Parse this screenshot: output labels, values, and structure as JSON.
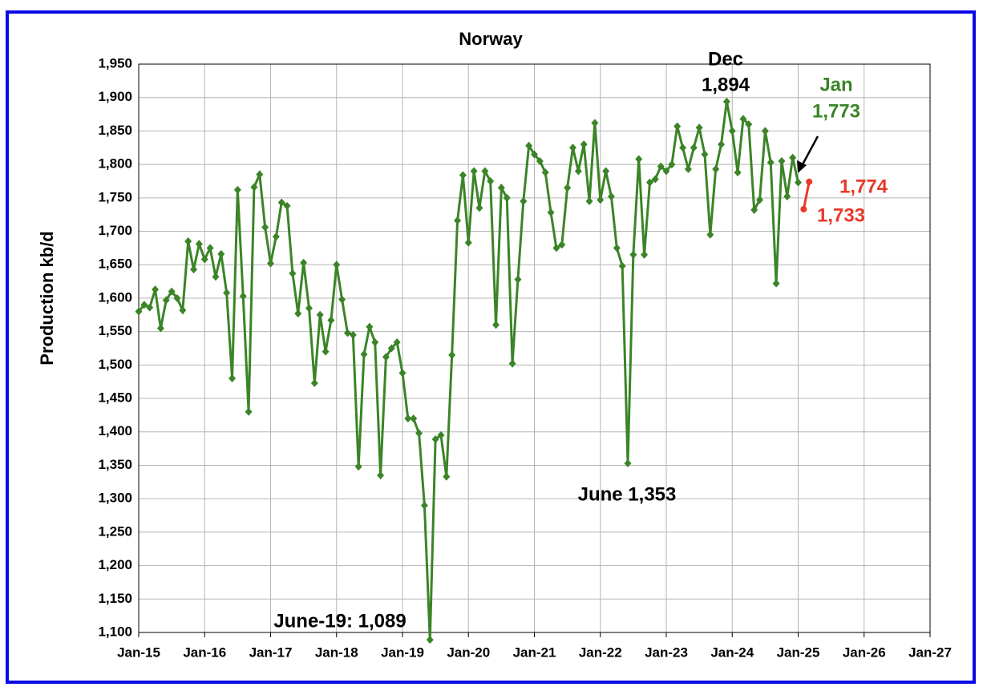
{
  "chart_data": {
    "type": "line",
    "title": "Norway",
    "y_label": "Production kb/d",
    "x": [
      "Jan-15",
      "Feb-15",
      "Mar-15",
      "Apr-15",
      "May-15",
      "Jun-15",
      "Jul-15",
      "Aug-15",
      "Sep-15",
      "Oct-15",
      "Nov-15",
      "Dec-15",
      "Jan-16",
      "Feb-16",
      "Mar-16",
      "Apr-16",
      "May-16",
      "Jun-16",
      "Jul-16",
      "Aug-16",
      "Sep-16",
      "Oct-16",
      "Nov-16",
      "Dec-16",
      "Jan-17",
      "Feb-17",
      "Mar-17",
      "Apr-17",
      "May-17",
      "Jun-17",
      "Jul-17",
      "Aug-17",
      "Sep-17",
      "Oct-17",
      "Nov-17",
      "Dec-17",
      "Jan-18",
      "Feb-18",
      "Mar-18",
      "Apr-18",
      "May-18",
      "Jun-18",
      "Jul-18",
      "Aug-18",
      "Sep-18",
      "Oct-18",
      "Nov-18",
      "Dec-18",
      "Jan-19",
      "Feb-19",
      "Mar-19",
      "Apr-19",
      "May-19",
      "Jun-19",
      "Jul-19",
      "Aug-19",
      "Sep-19",
      "Oct-19",
      "Nov-19",
      "Dec-19",
      "Jan-20",
      "Feb-20",
      "Mar-20",
      "Apr-20",
      "May-20",
      "Jun-20",
      "Jul-20",
      "Aug-20",
      "Sep-20",
      "Oct-20",
      "Nov-20",
      "Dec-20",
      "Jan-21",
      "Feb-21",
      "Mar-21",
      "Apr-21",
      "May-21",
      "Jun-21",
      "Jul-21",
      "Aug-21",
      "Sep-21",
      "Oct-21",
      "Nov-21",
      "Dec-21",
      "Jan-22",
      "Feb-22",
      "Mar-22",
      "Apr-22",
      "May-22",
      "Jun-22",
      "Jul-22",
      "Aug-22",
      "Sep-22",
      "Oct-22",
      "Nov-22",
      "Dec-22",
      "Jan-23",
      "Feb-23",
      "Mar-23",
      "Apr-23",
      "May-23",
      "Jun-23",
      "Jul-23",
      "Aug-23",
      "Sep-23",
      "Oct-23",
      "Nov-23",
      "Dec-23",
      "Jan-24",
      "Feb-24",
      "Mar-24",
      "Apr-24",
      "May-24",
      "Jun-24",
      "Jul-24",
      "Aug-24",
      "Sep-24",
      "Oct-24",
      "Nov-24",
      "Dec-24",
      "Jan-25"
    ],
    "series": [
      {
        "color": "#3b8427",
        "values": [
          1580,
          1590,
          1586,
          1613,
          1555,
          1597,
          1610,
          1600,
          1582,
          1685,
          1643,
          1681,
          1658,
          1675,
          1632,
          1666,
          1608,
          1480,
          1762,
          1603,
          1430,
          1766,
          1785,
          1706,
          1652,
          1692,
          1743,
          1738,
          1637,
          1577,
          1653,
          1585,
          1473,
          1575,
          1520,
          1567,
          1650,
          1598,
          1548,
          1545,
          1348,
          1516,
          1557,
          1534,
          1335,
          1512,
          1525,
          1534,
          1488,
          1420,
          1420,
          1398,
          1290,
          1089,
          1389,
          1395,
          1333,
          1515,
          1716,
          1784,
          1683,
          1790,
          1735,
          1790,
          1775,
          1560,
          1765,
          1750,
          1502,
          1628,
          1745,
          1828,
          1815,
          1805,
          1788,
          1728,
          1675,
          1680,
          1765,
          1825,
          1790,
          1830,
          1745,
          1862,
          1747,
          1790,
          1752,
          1675,
          1648,
          1353,
          1665,
          1808,
          1665,
          1773,
          1778,
          1797,
          1790,
          1800,
          1857,
          1825,
          1793,
          1825,
          1855,
          1815,
          1695,
          1793,
          1830,
          1894,
          1850,
          1788,
          1868,
          1860,
          1732,
          1747,
          1850,
          1803,
          1622,
          1805,
          1752,
          1810,
          1773
        ]
      },
      {
        "color": "#e8392a",
        "x": [
          "Feb-25",
          "Mar-25"
        ],
        "values": [
          1733,
          1774
        ]
      }
    ],
    "xlim": [
      "Jan-15",
      "Jan-27"
    ],
    "xticks": [
      "Jan-15",
      "Jan-16",
      "Jan-17",
      "Jan-18",
      "Jan-19",
      "Jan-20",
      "Jan-21",
      "Jan-22",
      "Jan-23",
      "Jan-24",
      "Jan-25",
      "Jan-26",
      "Jan-27"
    ],
    "ylim": [
      1100,
      1950
    ],
    "yticks": [
      {
        "value": 1100,
        "label": "1,100"
      },
      {
        "value": 1150,
        "label": "1,150"
      },
      {
        "value": 1200,
        "label": "1,200"
      },
      {
        "value": 1250,
        "label": "1,250"
      },
      {
        "value": 1300,
        "label": "1,300"
      },
      {
        "value": 1350,
        "label": "1,350"
      },
      {
        "value": 1400,
        "label": "1,400"
      },
      {
        "value": 1450,
        "label": "1,450"
      },
      {
        "value": 1500,
        "label": "1,500"
      },
      {
        "value": 1550,
        "label": "1,550"
      },
      {
        "value": 1600,
        "label": "1,600"
      },
      {
        "value": 1650,
        "label": "1,650"
      },
      {
        "value": 1700,
        "label": "1,700"
      },
      {
        "value": 1750,
        "label": "1,750"
      },
      {
        "value": 1800,
        "label": "1,800"
      },
      {
        "value": 1850,
        "label": "1,850"
      },
      {
        "value": 1900,
        "label": "1,900"
      },
      {
        "value": 1950,
        "label": "1,950"
      }
    ],
    "grid": true,
    "annotations": [
      {
        "text": "Dec",
        "color": "#000000"
      },
      {
        "text": "1,894",
        "color": "#000000"
      },
      {
        "text": "Jan",
        "color": "#3b8427"
      },
      {
        "text": "1,773",
        "color": "#3b8427"
      },
      {
        "text": "1,774",
        "color": "#e8392a"
      },
      {
        "text": "1,733",
        "color": "#e8392a"
      },
      {
        "text": "June 1,353",
        "color": "#000000"
      },
      {
        "text": "June-19: 1,089",
        "color": "#000000"
      }
    ]
  }
}
